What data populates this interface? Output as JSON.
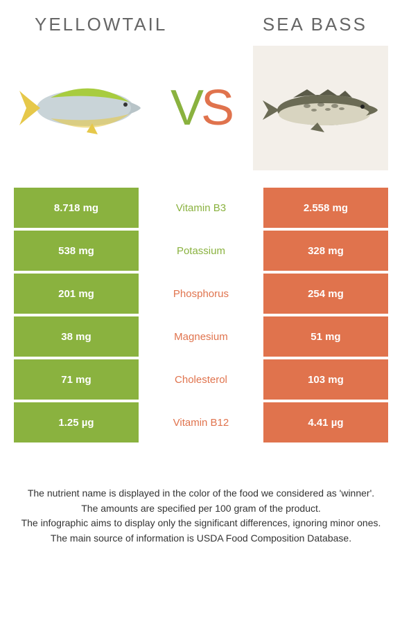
{
  "header": {
    "left_title": "Yellowtail",
    "right_title": "Sea bass"
  },
  "vs": {
    "v": "V",
    "s": "S"
  },
  "colors": {
    "left": "#8ab23f",
    "right": "#e0734d",
    "bg_right_box": "#f3efe9"
  },
  "rows": [
    {
      "left": "8.718 mg",
      "mid": "Vitamin B3",
      "right": "2.558 mg",
      "winner": "left"
    },
    {
      "left": "538 mg",
      "mid": "Potassium",
      "right": "328 mg",
      "winner": "left"
    },
    {
      "left": "201 mg",
      "mid": "Phosphorus",
      "right": "254 mg",
      "winner": "right"
    },
    {
      "left": "38 mg",
      "mid": "Magnesium",
      "right": "51 mg",
      "winner": "right"
    },
    {
      "left": "71 mg",
      "mid": "Cholesterol",
      "right": "103 mg",
      "winner": "right"
    },
    {
      "left": "1.25 µg",
      "mid": "Vitamin B12",
      "right": "4.41 µg",
      "winner": "right"
    }
  ],
  "footnotes": [
    "The nutrient name is displayed in the color of the food we considered as 'winner'.",
    "The amounts are specified per 100 gram of the product.",
    "The infographic aims to display only the significant differences, ignoring minor ones.",
    "The main source of information is USDA Food Composition Database."
  ]
}
